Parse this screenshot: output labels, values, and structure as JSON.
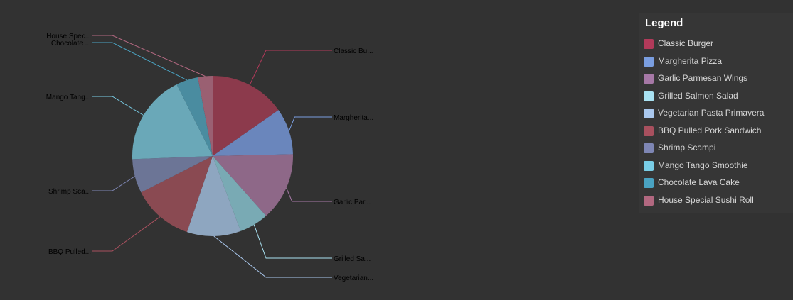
{
  "chart_data": {
    "type": "pie",
    "legend_title": "Legend",
    "legend_position": "top-right",
    "slices": [
      {
        "label": "Classic Burger",
        "short_label": "Classic Bu...",
        "value": 15.5,
        "color": "#b13a5a",
        "slice_color": "#8c3a4c"
      },
      {
        "label": "Margherita Pizza",
        "short_label": "Margherita...",
        "value": 9.5,
        "color": "#7a9ee0",
        "slice_color": "#6a86bc"
      },
      {
        "label": "Garlic Parmesan Wings",
        "short_label": "Garlic Par...",
        "value": 14.0,
        "color": "#a678a6",
        "slice_color": "#8e6888"
      },
      {
        "label": "Grilled Salmon Salad",
        "short_label": "Grilled Sa...",
        "value": 6.0,
        "color": "#a9e2f2",
        "slice_color": "#79aab4"
      },
      {
        "label": "Vegetarian Pasta Primavera",
        "short_label": "Vegetarian...",
        "value": 11.0,
        "color": "#aac8ee",
        "slice_color": "#8ea6c0"
      },
      {
        "label": "BBQ Pulled Pork Sandwich",
        "short_label": "BBQ Pulled...",
        "value": 12.5,
        "color": "#a8505e",
        "slice_color": "#8a4a52"
      },
      {
        "label": "Shrimp Scampi",
        "short_label": "Shrimp Sca...",
        "value": 7.0,
        "color": "#7e86b4",
        "slice_color": "#6c7596"
      },
      {
        "label": "Mango Tango Smoothie",
        "short_label": "Mango Tang...",
        "value": 18.5,
        "color": "#79cde6",
        "slice_color": "#6aa8b8"
      },
      {
        "label": "Chocolate Lava Cake",
        "short_label": "Chocolate ...",
        "value": 4.5,
        "color": "#4aa3c2",
        "slice_color": "#4a8ca0"
      },
      {
        "label": "House Special Sushi Roll",
        "short_label": "House Spec...",
        "value": 3.0,
        "color": "#b26880",
        "slice_color": "#9a6072"
      }
    ]
  }
}
